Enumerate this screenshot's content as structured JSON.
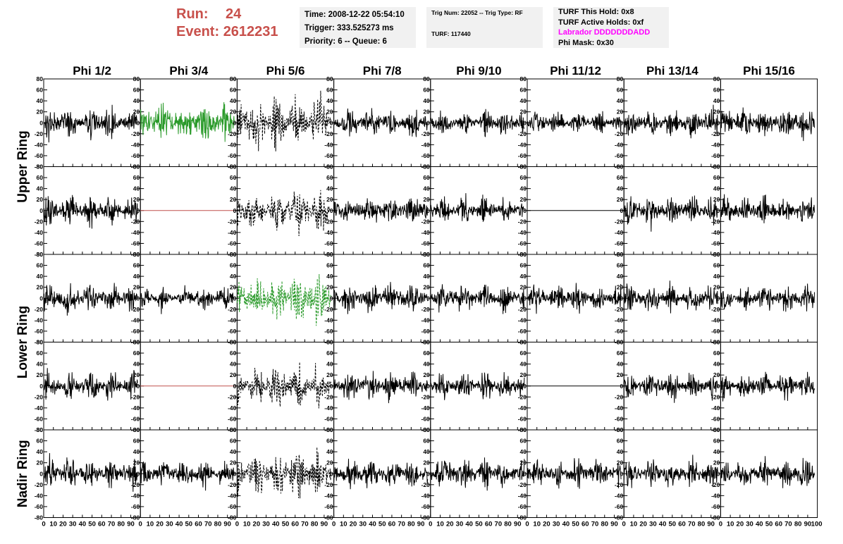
{
  "header": {
    "run_label": "Run:",
    "run_value": "24",
    "event_label": "Event:",
    "event_value": "2612231"
  },
  "info_time": {
    "time": "Time: 2008-12-22 05:54:10",
    "trigger": "Trigger: 333.525273 ms",
    "priority": "Priority: 6 -- Queue: 6"
  },
  "info_trig": {
    "trig": "Trig Num: 22052 -- Trig Type: RF",
    "turf": "TURF: 117440"
  },
  "info_turf": {
    "this_hold": "TURF This Hold: 0x8",
    "active_holds": "TURF Active Holds: 0xf",
    "labrador": "Labrador DDDDDDDADD",
    "phi_mask": "Phi Mask: 0x30"
  },
  "colors": {
    "solid": "#000000",
    "triggered": "#2a9a2a",
    "flatline": "#c0504d",
    "frame": "#000000"
  },
  "chart_data": {
    "type": "line",
    "columns": [
      "Phi 1/2",
      "Phi 3/4",
      "Phi 5/6",
      "Phi 7/8",
      "Phi 9/10",
      "Phi 11/12",
      "Phi 13/14",
      "Phi 15/16"
    ],
    "rows": [
      "Upper Ring",
      "Upper Ring",
      "Lower Ring",
      "Lower Ring",
      "Nadir Ring"
    ],
    "row_labels": [
      "Upper Ring",
      "Lower Ring",
      "Nadir Ring"
    ],
    "ylim": [
      -80,
      80
    ],
    "xlim": [
      0,
      100
    ],
    "yticks": [
      -80,
      -60,
      -40,
      -20,
      0,
      20,
      40,
      60,
      80
    ],
    "ytick_labels": [
      "-80",
      "-60",
      "-40",
      "-20",
      "0",
      "20",
      "40",
      "60",
      "80"
    ],
    "xticks": [
      0,
      10,
      20,
      30,
      40,
      50,
      60,
      70,
      80,
      90
    ],
    "xtick_labels": [
      "0",
      "10",
      "20",
      "30",
      "40",
      "50",
      "60",
      "70",
      "80",
      "90"
    ],
    "last_xtick_label": "100",
    "panels_style": [
      [
        "solid",
        "triggered",
        "dashed",
        "solid",
        "solid",
        "solid",
        "solid",
        "solid"
      ],
      [
        "solid",
        "flat-red",
        "dashed",
        "solid",
        "solid",
        "flat-black",
        "solid",
        "solid"
      ],
      [
        "solid",
        "solid",
        "triggered-dashed",
        "solid",
        "solid",
        "solid",
        "solid",
        "solid"
      ],
      [
        "solid",
        "flat-red",
        "dashed",
        "solid",
        "solid",
        "flat-black",
        "solid",
        "solid"
      ],
      [
        "solid",
        "solid",
        "dashed",
        "solid",
        "solid",
        "solid",
        "solid",
        "solid"
      ]
    ],
    "panels_amplitude": [
      [
        15,
        20,
        28,
        15,
        14,
        11,
        15,
        17
      ],
      [
        15,
        0,
        22,
        15,
        14,
        0,
        15,
        16
      ],
      [
        15,
        12,
        26,
        16,
        15,
        14,
        15,
        13
      ],
      [
        15,
        0,
        22,
        15,
        14,
        0,
        14,
        15
      ],
      [
        16,
        14,
        24,
        15,
        16,
        15,
        15,
        16
      ]
    ]
  }
}
